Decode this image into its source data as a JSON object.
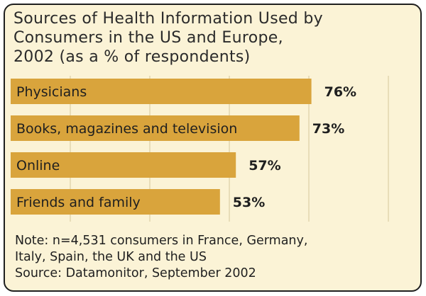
{
  "chart_data": {
    "type": "bar",
    "orientation": "horizontal",
    "title_lines": [
      "Sources of Health Information Used by",
      "Consumers in the US and Europe,",
      "2002 (as a % of respondents)"
    ],
    "categories": [
      "Physicians",
      "Books, magazines and television",
      "Online",
      "Friends and family"
    ],
    "values": [
      76,
      73,
      57,
      53
    ],
    "value_labels": [
      "76%",
      "73%",
      "57%",
      "53%"
    ],
    "xlim": [
      0,
      100
    ],
    "grid": true,
    "bar_color": "#d9a43c",
    "background_color": "#fbf3d6",
    "grid_color": "#e2d6ae"
  },
  "footer": {
    "note_line1": "Note: n=4,531 consumers in France, Germany,",
    "note_line2": "Italy, Spain, the UK and the US",
    "source": "Source: Datamonitor, September 2002"
  }
}
